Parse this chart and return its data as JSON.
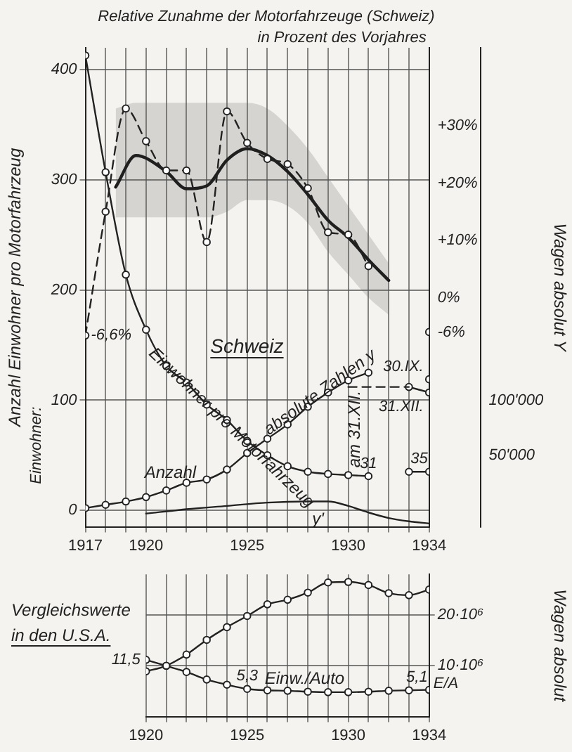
{
  "chart_data": [
    {
      "type": "line",
      "title": "Relative Zunahme der Motorfahrzeuge (Schweiz)",
      "subtitle": "in Prozent des Vorjahres",
      "ylabel": "Anzahl Einwohner pro Motorfahrzeug",
      "y3label": "Wagen absolut Y",
      "xlim": [
        1917,
        1934
      ],
      "xticks": [
        1917,
        {
          "value": 1918,
          "label": null
        },
        {
          "value": 1919,
          "label": null
        },
        1920,
        {
          "value": 1921,
          "label": null
        },
        {
          "value": 1922,
          "label": null
        },
        {
          "value": 1923,
          "label": null
        },
        {
          "value": 1924,
          "label": null
        },
        1925,
        {
          "value": 1926,
          "label": null
        },
        {
          "value": 1927,
          "label": null
        },
        {
          "value": 1928,
          "label": null
        },
        {
          "value": 1929,
          "label": null
        },
        1930,
        {
          "value": 1931,
          "label": null
        },
        {
          "value": 1932,
          "label": null
        },
        {
          "value": 1933,
          "label": null
        },
        1934
      ],
      "ylim": [
        -15,
        420
      ],
      "yticks": [
        0,
        100,
        200,
        300,
        400
      ],
      "y2lim": [
        -40,
        43.6
      ],
      "y2ticks": [
        {
          "value": 30,
          "label": "+30%"
        },
        {
          "value": 20,
          "label": "+20%"
        },
        {
          "value": 10,
          "label": "+10%"
        },
        {
          "value": 0,
          "label": "0%"
        },
        {
          "value": -6,
          "label": "-6%"
        }
      ],
      "y3lim": [
        -15000,
        420000
      ],
      "y3ticks": [
        {
          "value": 50000,
          "label": "50'000"
        },
        {
          "value": 100000,
          "label": "100'000"
        }
      ],
      "grid": true,
      "line_style": "solid",
      "annotations": [
        "Einwohner:",
        "Schweiz",
        "Anzahl",
        "31.XII.",
        "30.IX."
      ],
      "series": [
        {
          "name": "Einwohner pro Motorfahrzeug",
          "color": "#222222",
          "marker": "circle",
          "x": [
            1917,
            1918,
            1919,
            1920,
            1921,
            1922,
            1923,
            1924,
            1925,
            1926,
            1927,
            1928,
            1929,
            1930,
            1931,
            1932,
            1933,
            1934
          ],
          "values": [
            413,
            307,
            214,
            164,
            131,
            116,
            96,
            82,
            63,
            50,
            40,
            35,
            33,
            32,
            31,
            null,
            35,
            35
          ],
          "value_labels": [
            null,
            null,
            null,
            null,
            null,
            null,
            null,
            null,
            null,
            null,
            null,
            null,
            null,
            null,
            "31",
            null,
            null,
            "35"
          ]
        },
        {
          "name": "absolute Zahlen y",
          "axis": "y3",
          "color": "#222222",
          "marker": "circle",
          "x": [
            1917,
            1918,
            1919,
            1920,
            1921,
            1922,
            1923,
            1924,
            1925,
            1926,
            1927,
            1928,
            1929,
            1930,
            1931
          ],
          "values": [
            2000,
            5000,
            8000,
            12000,
            18000,
            25000,
            28000,
            37000,
            52000,
            65000,
            78000,
            94000,
            107000,
            118000,
            125000
          ]
        },
        {
          "name": "am 31.XII.",
          "axis": "y3",
          "color": "#222222",
          "line_style": "dashed",
          "x": [
            1930,
            1933
          ],
          "values": [
            112000,
            112000
          ]
        },
        {
          "axis": "y3",
          "color": "#222222",
          "marker": "circle",
          "x": [
            1933,
            1934
          ],
          "values": [
            112000,
            107000
          ]
        },
        {
          "type": "scatter",
          "axis": "y3",
          "color": "#222222",
          "marker": "circle",
          "x": [
            1934
          ],
          "values": [
            119000
          ]
        },
        {
          "name": "y'",
          "color": "#222222",
          "x": [
            1920,
            1922,
            1924,
            1926,
            1928,
            1929,
            1930,
            1931,
            1932,
            1933,
            1934
          ],
          "values": [
            -3,
            1,
            4,
            7,
            8,
            8,
            4,
            -2,
            -7,
            -10,
            -12
          ]
        },
        {
          "axis": "y2",
          "color": "#222222",
          "line_style": "dashed",
          "marker": "circle",
          "x": [
            1917,
            1918,
            1919,
            1920,
            1921,
            1922,
            1923,
            1924,
            1925,
            1926,
            1927,
            1928,
            1929,
            1930,
            1931,
            1932,
            1933,
            1934
          ],
          "values": [
            -6.6,
            15,
            33,
            27.3,
            22.2,
            22.2,
            9.7,
            32.5,
            27,
            24.2,
            23.3,
            19.1,
            11.4,
            11,
            5.5,
            null,
            null,
            -6
          ],
          "value_labels": [
            "-6,6%",
            null,
            null,
            null,
            null,
            null,
            null,
            null,
            null,
            null,
            null,
            null,
            null,
            null,
            null,
            null,
            null,
            null
          ]
        },
        {
          "axis": "y2",
          "color": "#111111",
          "x": [
            1918.5,
            1919.5,
            1921,
            1922,
            1923,
            1924,
            1925,
            1926,
            1927,
            1928,
            1929,
            1930,
            1931,
            1932
          ],
          "values": [
            19.3,
            24.8,
            22,
            19,
            19.5,
            24,
            26,
            24.8,
            22,
            18,
            13.5,
            10.5,
            6.6,
            3
          ],
          "upper": [
            33,
            34,
            34,
            34,
            34,
            34,
            34,
            33,
            30,
            26,
            21,
            16,
            11,
            6
          ],
          "lower": [
            14,
            14,
            14,
            14,
            14,
            15,
            17,
            17,
            16,
            13,
            8,
            4,
            0,
            -3
          ]
        }
      ]
    },
    {
      "type": "line",
      "title": "Vergleichswerte in den U.S.A.",
      "y2label": "Wagen absolut",
      "xlim": [
        1920,
        1934
      ],
      "xticks": [
        1920,
        {
          "value": 1921,
          "label": null
        },
        {
          "value": 1922,
          "label": null
        },
        {
          "value": 1923,
          "label": null
        },
        {
          "value": 1924,
          "label": null
        },
        1925,
        {
          "value": 1926,
          "label": null
        },
        {
          "value": 1927,
          "label": null
        },
        {
          "value": 1928,
          "label": null
        },
        {
          "value": 1929,
          "label": null
        },
        1930,
        {
          "value": 1931,
          "label": null
        },
        {
          "value": 1932,
          "label": null
        },
        {
          "value": 1933,
          "label": null
        },
        1934
      ],
      "ylim": [
        -0.6,
        29.7
      ],
      "y2lim": [
        0,
        28000000
      ],
      "y2ticks": [
        {
          "value": 10000000,
          "label": "10·10⁶"
        },
        {
          "value": 20000000,
          "label": "20·10⁶"
        }
      ],
      "grid": true,
      "marker": "circle",
      "line_style": "solid",
      "annotations": [
        "E/A"
      ],
      "series": [
        {
          "axis": "y2",
          "color": "#222222",
          "x": [
            1920,
            1921,
            1922,
            1923,
            1924,
            1925,
            1926,
            1927,
            1928,
            1929,
            1930,
            1931,
            1932,
            1933,
            1934
          ],
          "values": [
            8900000,
            10000000,
            12200000,
            15100000,
            17600000,
            19800000,
            22100000,
            23000000,
            24400000,
            26400000,
            26500000,
            25900000,
            24300000,
            23900000,
            25000000
          ]
        },
        {
          "name": "Einw./Auto",
          "color": "#222222",
          "x": [
            1920,
            1921,
            1922,
            1923,
            1924,
            1925,
            1926,
            1927,
            1928,
            1929,
            1930,
            1931,
            1932,
            1933,
            1934
          ],
          "values": [
            11.5,
            10.2,
            8.9,
            7.3,
            6.2,
            5.3,
            5.0,
            4.9,
            4.7,
            4.6,
            4.6,
            4.7,
            4.9,
            5.0,
            5.1
          ],
          "value_labels": [
            "11,5",
            null,
            null,
            null,
            null,
            "5,3",
            null,
            null,
            null,
            null,
            null,
            null,
            null,
            null,
            "5,1"
          ]
        }
      ]
    }
  ]
}
